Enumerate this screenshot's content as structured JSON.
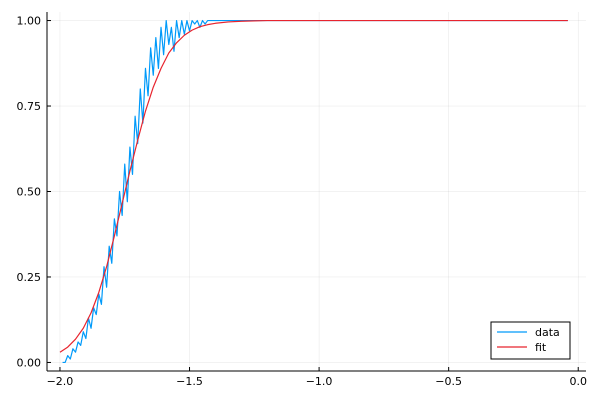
{
  "chart_data": {
    "type": "line",
    "title": "",
    "xlabel": "",
    "ylabel": "",
    "xlim": [
      -2.05,
      0.03
    ],
    "ylim": [
      -0.025,
      1.025
    ],
    "x_ticks": [
      {
        "value": -2.0,
        "label": "−2.0"
      },
      {
        "value": -1.5,
        "label": "−1.5"
      },
      {
        "value": -1.0,
        "label": "−1.0"
      },
      {
        "value": -0.5,
        "label": "−0.5"
      },
      {
        "value": 0.0,
        "label": "0.0"
      }
    ],
    "y_ticks": [
      {
        "value": 0.0,
        "label": "0.00"
      },
      {
        "value": 0.25,
        "label": "0.25"
      },
      {
        "value": 0.5,
        "label": "0.50"
      },
      {
        "value": 0.75,
        "label": "0.75"
      },
      {
        "value": 1.0,
        "label": "1.00"
      }
    ],
    "grid": true,
    "legend_position": "bottom-right",
    "series": [
      {
        "name": "data",
        "color": "#009AFA",
        "x": [
          -1.99,
          -1.98,
          -1.97,
          -1.96,
          -1.95,
          -1.94,
          -1.93,
          -1.92,
          -1.91,
          -1.9,
          -1.89,
          -1.88,
          -1.87,
          -1.86,
          -1.85,
          -1.84,
          -1.83,
          -1.82,
          -1.81,
          -1.8,
          -1.79,
          -1.78,
          -1.77,
          -1.76,
          -1.75,
          -1.74,
          -1.73,
          -1.72,
          -1.71,
          -1.7,
          -1.69,
          -1.68,
          -1.67,
          -1.66,
          -1.65,
          -1.64,
          -1.63,
          -1.62,
          -1.61,
          -1.6,
          -1.59,
          -1.58,
          -1.57,
          -1.56,
          -1.55,
          -1.54,
          -1.53,
          -1.52,
          -1.51,
          -1.5,
          -1.49,
          -1.48,
          -1.47,
          -1.46,
          -1.45,
          -1.44,
          -1.43,
          -1.42,
          -1.41,
          -1.4,
          -1.35,
          -1.3,
          -1.25,
          -1.2,
          -1.1,
          -1.0,
          -0.8,
          -0.6,
          -0.4,
          -0.2,
          -0.04
        ],
        "y": [
          0.0,
          0.0,
          0.02,
          0.01,
          0.04,
          0.03,
          0.06,
          0.05,
          0.09,
          0.07,
          0.13,
          0.1,
          0.16,
          0.14,
          0.2,
          0.17,
          0.28,
          0.22,
          0.34,
          0.29,
          0.42,
          0.37,
          0.5,
          0.43,
          0.58,
          0.47,
          0.63,
          0.55,
          0.72,
          0.64,
          0.8,
          0.7,
          0.86,
          0.78,
          0.92,
          0.84,
          0.95,
          0.86,
          0.98,
          0.9,
          1.0,
          0.93,
          0.98,
          0.91,
          1.0,
          0.95,
          1.0,
          0.96,
          1.0,
          0.97,
          1.0,
          0.99,
          1.0,
          0.98,
          1.0,
          0.99,
          1.0,
          1.0,
          1.0,
          1.0,
          1.0,
          1.0,
          1.0,
          1.0,
          1.0,
          1.0,
          1.0,
          1.0,
          1.0,
          1.0,
          1.0
        ]
      },
      {
        "name": "fit",
        "color": "#E8242E",
        "x": [
          -2.0,
          -1.97,
          -1.94,
          -1.91,
          -1.88,
          -1.85,
          -1.82,
          -1.79,
          -1.76,
          -1.73,
          -1.7,
          -1.67,
          -1.64,
          -1.61,
          -1.58,
          -1.55,
          -1.52,
          -1.49,
          -1.46,
          -1.43,
          -1.4,
          -1.35,
          -1.3,
          -1.25,
          -1.2,
          -1.1,
          -1.0,
          -0.9,
          -0.8,
          -0.6,
          -0.4,
          -0.2,
          -0.04
        ],
        "y": [
          0.03,
          0.045,
          0.068,
          0.1,
          0.145,
          0.205,
          0.28,
          0.37,
          0.465,
          0.56,
          0.65,
          0.735,
          0.805,
          0.86,
          0.905,
          0.935,
          0.957,
          0.972,
          0.982,
          0.988,
          0.992,
          0.996,
          0.998,
          0.999,
          1.0,
          1.0,
          1.0,
          1.0,
          1.0,
          1.0,
          1.0,
          1.0,
          1.0
        ]
      }
    ]
  }
}
